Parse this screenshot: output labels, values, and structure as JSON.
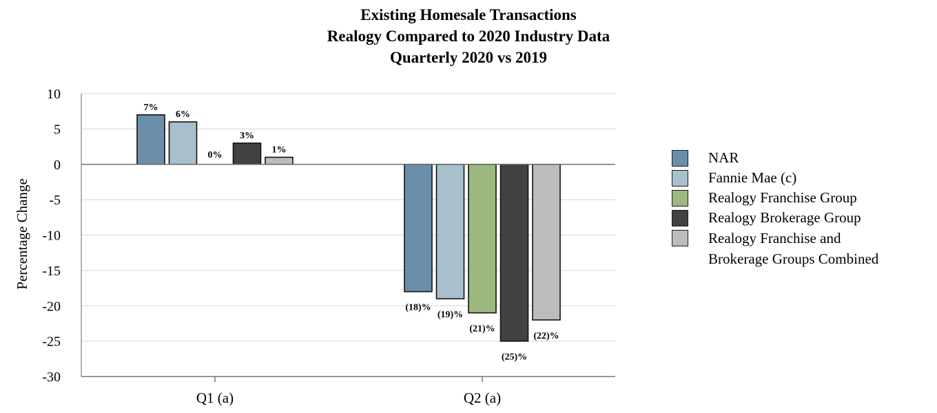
{
  "chart_data": {
    "type": "bar",
    "title": [
      "Existing Homesale Transactions",
      "Realogy Compared to 2020 Industry Data",
      "Quarterly 2020 vs 2019"
    ],
    "ylabel": "Percentage Change",
    "xlabel": "",
    "ylim": [
      -30,
      10
    ],
    "yticks": [
      "10",
      "5",
      "0",
      "-5",
      "-10",
      "-15",
      "-20",
      "-25",
      "-30"
    ],
    "grid": true,
    "legend_position": "right",
    "categories": [
      "Q1 (a)",
      "Q2 (a)"
    ],
    "series": [
      {
        "name": "NAR",
        "color": "#6b8faa",
        "values": [
          7,
          -18
        ],
        "labels": [
          "7%",
          "(18)%"
        ]
      },
      {
        "name": "Fannie Mae (c)",
        "color": "#a8bfcc",
        "values": [
          6,
          -19
        ],
        "labels": [
          "6%",
          "(19)%"
        ]
      },
      {
        "name": "Realogy Franchise Group",
        "color": "#9db87f",
        "values": [
          0,
          -21
        ],
        "labels": [
          "0%",
          "(21)%"
        ]
      },
      {
        "name": "Realogy Brokerage Group",
        "color": "#404244",
        "values": [
          3,
          -25
        ],
        "labels": [
          "3%",
          "(25)%"
        ]
      },
      {
        "name": "Realogy Franchise and Brokerage Groups Combined",
        "name_lines": [
          "Realogy Franchise and",
          "Brokerage Groups Combined"
        ],
        "color": "#babcbe",
        "values": [
          1,
          -22
        ],
        "labels": [
          "1%",
          "(22)%"
        ]
      }
    ]
  }
}
